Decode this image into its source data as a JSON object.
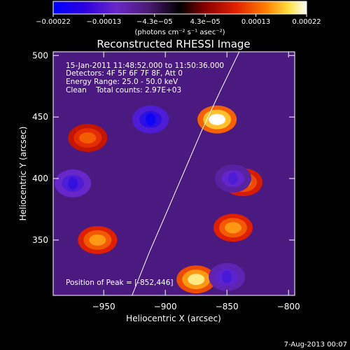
{
  "chart_data": {
    "type": "heatmap",
    "title": "Reconstructed RHESSI Image",
    "xlabel": "Heliocentric X (arcsec)",
    "ylabel": "Heliocentric Y (arcsec)",
    "xlim": [
      -991,
      -795
    ],
    "ylim": [
      305,
      503
    ],
    "xticks": [
      -950,
      -900,
      -850,
      -800
    ],
    "xtick_labels": [
      "−950",
      "−900",
      "−850",
      "−800"
    ],
    "yticks": [
      350,
      400,
      450,
      500
    ],
    "ytick_labels": [
      "350",
      "400",
      "450",
      "500"
    ],
    "colorbar": {
      "range": [
        -0.00022,
        0.00022
      ],
      "tick_labels": [
        "−0.00022",
        "−0.00013",
        "−4.3e−05",
        "4.3e−05",
        "0.00013",
        "0.00022"
      ],
      "unit_label": "(photons cm⁻² s⁻¹ asec⁻²)",
      "colormap": [
        "#0000ff",
        "#3c00c0",
        "#7a30c0",
        "#000000",
        "#8a0000",
        "#d02000",
        "#ff6000",
        "#ffa000",
        "#ffff60",
        "#ffffff"
      ]
    },
    "annotations": [
      "15-Jan-2011 11:48:52.000 to 11:50:36.000",
      "Detectors: 4F 5F 6F 7F 8F, Att 0",
      "Energy Range: 25.0 - 50.0 keV",
      "Clean    Total counts: 2.97E+03"
    ],
    "peak_label": "Position of Peak = [-852,446]",
    "limb_curve": [
      [
        -927,
        305
      ],
      [
        -913,
        340
      ],
      [
        -900,
        370
      ],
      [
        -885,
        405
      ],
      [
        -870,
        440
      ],
      [
        -855,
        472
      ],
      [
        -840,
        503
      ]
    ],
    "features": [
      {
        "x": -912,
        "y": 448,
        "value": -0.0002
      },
      {
        "x": -975,
        "y": 396,
        "value": -0.00015
      },
      {
        "x": -858,
        "y": 448,
        "value": 0.00022
      },
      {
        "x": -875,
        "y": 318,
        "value": 0.0002
      },
      {
        "x": -955,
        "y": 350,
        "value": 0.00016
      },
      {
        "x": -845,
        "y": 360,
        "value": 0.00016
      },
      {
        "x": -837,
        "y": 397,
        "value": 0.00015
      },
      {
        "x": -963,
        "y": 433,
        "value": 0.00013
      },
      {
        "x": -845,
        "y": 400,
        "value": -0.00012
      },
      {
        "x": -850,
        "y": 320,
        "value": -0.00013
      }
    ],
    "grid": false
  },
  "footer_date": "7-Aug-2013 00:07"
}
